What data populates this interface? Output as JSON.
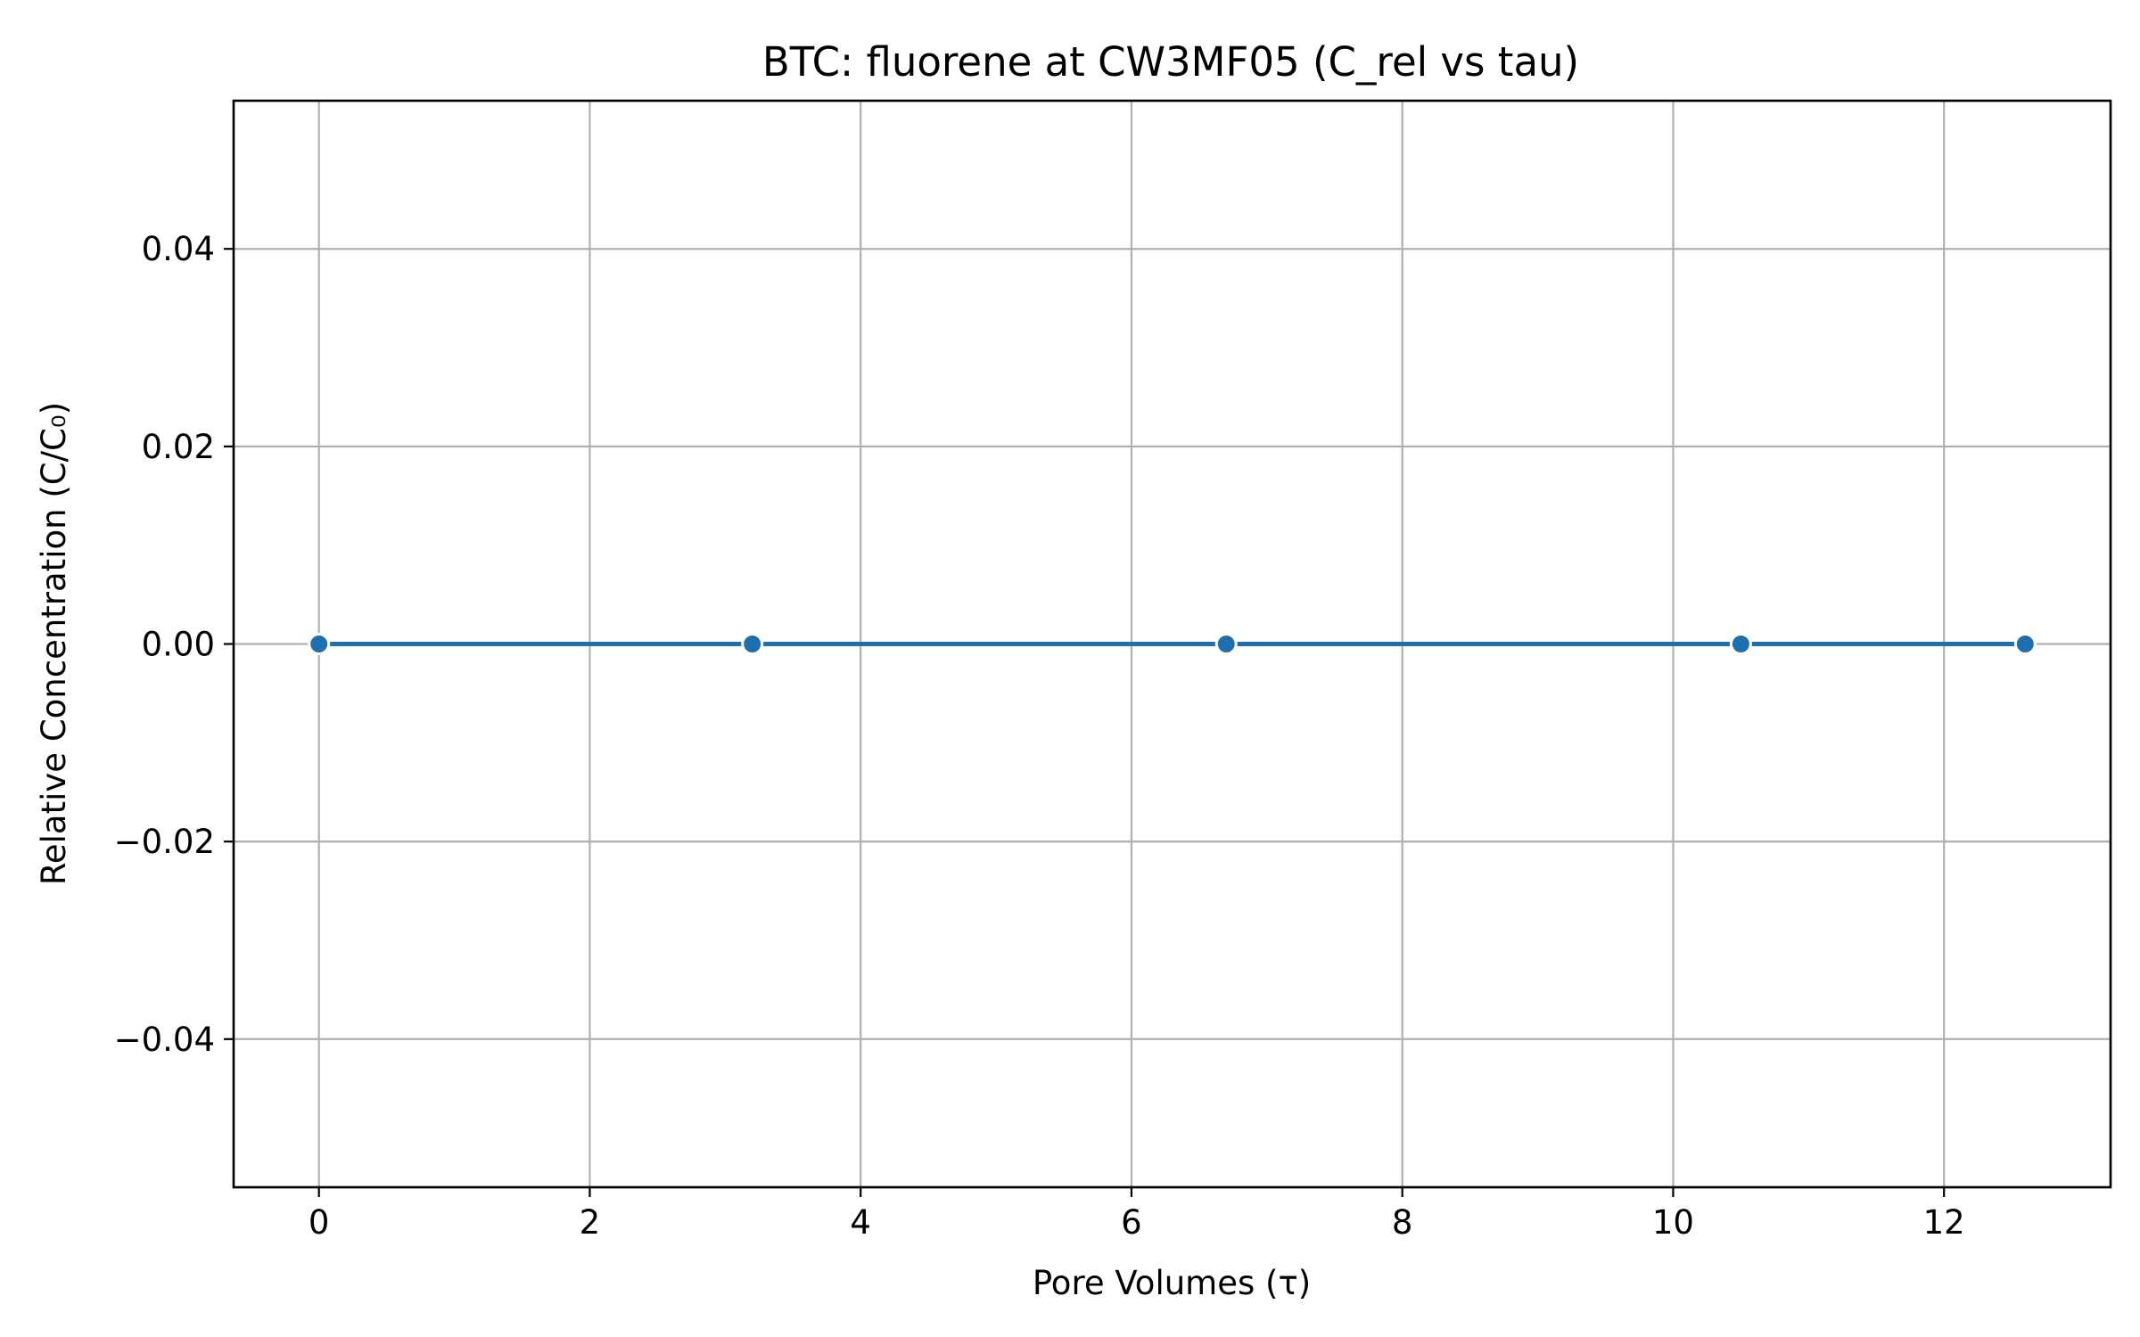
{
  "chart_data": {
    "type": "line",
    "title": "BTC: fluorene at CW3MF05 (C_rel vs tau)",
    "xlabel": "Pore Volumes (τ)",
    "ylabel": "Relative Concentration (C/C₀)",
    "xlim": [
      -0.63,
      13.23
    ],
    "ylim": [
      -0.055,
      0.055
    ],
    "xticks": [
      0,
      2,
      4,
      6,
      8,
      10,
      12
    ],
    "xtick_labels": [
      "0",
      "2",
      "4",
      "6",
      "8",
      "10",
      "12"
    ],
    "yticks": [
      0.04,
      0.02,
      0.0,
      -0.02,
      -0.04
    ],
    "ytick_labels": [
      "0.04",
      "0.02",
      "0.00",
      "−0.02",
      "−0.04"
    ],
    "grid": true,
    "series": [
      {
        "name": "fluorene",
        "color": "#1f6faf",
        "marker": "circle",
        "x": [
          0.0,
          3.2,
          6.7,
          10.5,
          12.6
        ],
        "y": [
          0.0,
          0.0,
          0.0,
          0.0,
          0.0
        ]
      }
    ]
  }
}
